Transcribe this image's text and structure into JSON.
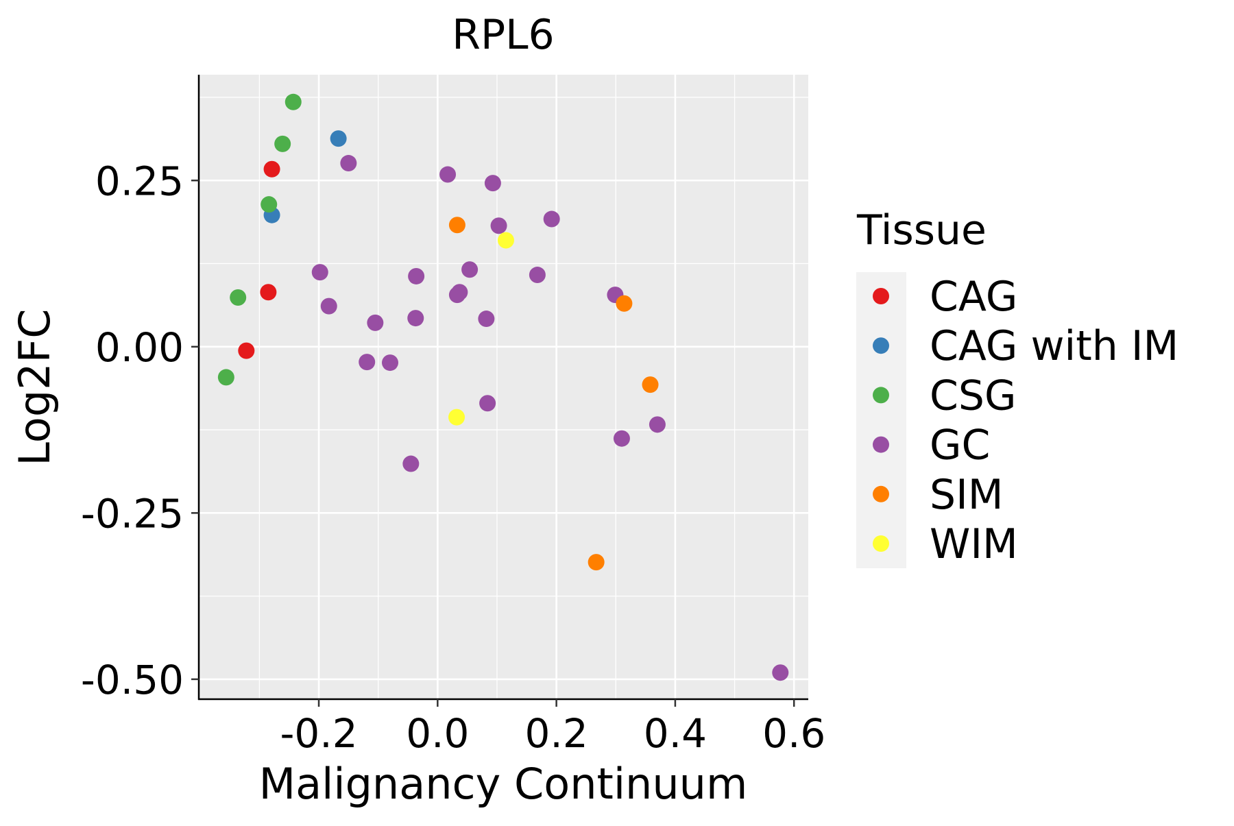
{
  "chart_data": {
    "type": "scatter",
    "title": "RPL6",
    "xlabel": "Malignancy Continuum",
    "ylabel": "Log2FC",
    "xlim": [
      -0.402,
      0.624
    ],
    "ylim": [
      -0.53,
      0.409
    ],
    "x_ticks": [
      -0.2,
      0.0,
      0.2,
      0.4,
      0.6
    ],
    "x_tick_labels": [
      "-0.2",
      "0.0",
      "0.2",
      "0.4",
      "0.6"
    ],
    "y_ticks": [
      0.25,
      0.0,
      -0.25,
      -0.5
    ],
    "y_tick_labels": [
      "0.25",
      "0.00",
      "-0.25",
      "-0.50"
    ],
    "grid": true,
    "legend": {
      "title": "Tissue",
      "placement": "right",
      "entries": [
        "CAG",
        "CAG with IM",
        "CSG",
        "GC",
        "SIM",
        "WIM"
      ]
    },
    "series": [
      {
        "name": "CAG",
        "color": "#E41A1C",
        "points": [
          [
            -0.279,
            0.267
          ],
          [
            -0.285,
            0.082
          ],
          [
            -0.322,
            -0.006
          ]
        ]
      },
      {
        "name": "CAG with IM",
        "color": "#377EB8",
        "points": [
          [
            -0.167,
            0.313
          ],
          [
            -0.279,
            0.198
          ]
        ]
      },
      {
        "name": "CSG",
        "color": "#4DAF4A",
        "points": [
          [
            -0.243,
            0.368
          ],
          [
            -0.261,
            0.305
          ],
          [
            -0.284,
            0.214
          ],
          [
            -0.336,
            0.074
          ],
          [
            -0.356,
            -0.046
          ]
        ]
      },
      {
        "name": "GC",
        "color": "#984EA3",
        "points": [
          [
            -0.15,
            0.276
          ],
          [
            0.017,
            0.259
          ],
          [
            0.093,
            0.246
          ],
          [
            0.103,
            0.182
          ],
          [
            0.192,
            0.192
          ],
          [
            0.054,
            0.116
          ],
          [
            -0.036,
            0.106
          ],
          [
            -0.198,
            0.112
          ],
          [
            0.168,
            0.108
          ],
          [
            0.033,
            0.078
          ],
          [
            0.037,
            0.082
          ],
          [
            -0.183,
            0.061
          ],
          [
            -0.105,
            0.036
          ],
          [
            -0.037,
            0.043
          ],
          [
            0.082,
            0.042
          ],
          [
            0.299,
            0.078
          ],
          [
            -0.119,
            -0.023
          ],
          [
            -0.08,
            -0.024
          ],
          [
            0.084,
            -0.085
          ],
          [
            0.31,
            -0.138
          ],
          [
            0.37,
            -0.117
          ],
          [
            -0.045,
            -0.176
          ],
          [
            0.577,
            -0.49
          ]
        ]
      },
      {
        "name": "SIM",
        "color": "#FF7F00",
        "points": [
          [
            0.033,
            0.183
          ],
          [
            0.314,
            0.065
          ],
          [
            0.358,
            -0.057
          ],
          [
            0.267,
            -0.324
          ]
        ]
      },
      {
        "name": "WIM",
        "color": "#FFFF33",
        "points": [
          [
            0.115,
            0.16
          ],
          [
            0.032,
            -0.106
          ]
        ]
      }
    ]
  }
}
